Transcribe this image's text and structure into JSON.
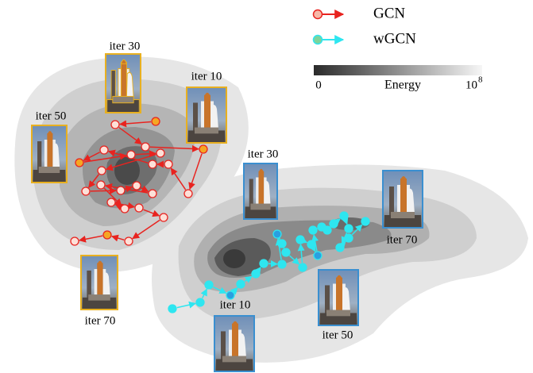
{
  "legend": [
    {
      "label": "GCN",
      "color": "#e8231f"
    },
    {
      "label": "wGCN",
      "color": "#2ee6f0"
    }
  ],
  "colorbar": {
    "min_label": "0",
    "title": "Energy",
    "max_base": "10",
    "max_exponent": "8"
  },
  "gcn_labels": [
    "iter 30",
    "iter 10",
    "iter 50",
    "iter 70"
  ],
  "wgcn_labels": [
    "iter 30",
    "iter 70",
    "iter 10",
    "iter 50"
  ]
}
